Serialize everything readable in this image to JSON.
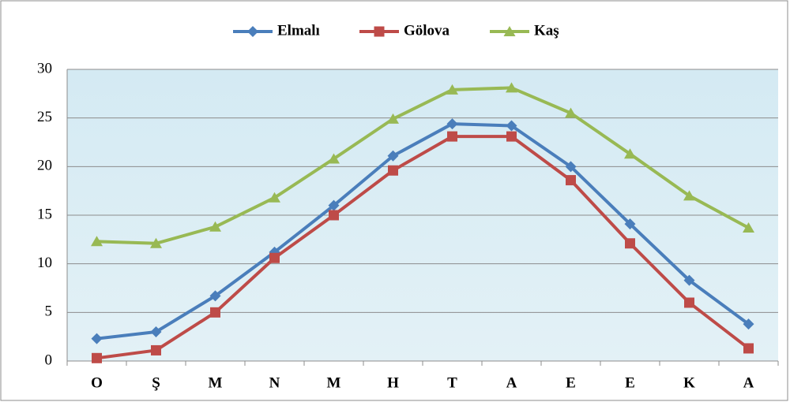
{
  "chart_data": {
    "type": "line",
    "categories": [
      "O",
      "Ş",
      "M",
      "N",
      "M",
      "H",
      "T",
      "A",
      "E",
      "E",
      "K",
      "A"
    ],
    "series": [
      {
        "name": "Elmalı",
        "color": "#4a7ebb",
        "marker": "diamond",
        "values": [
          2.3,
          3.0,
          6.7,
          11.2,
          16.0,
          21.1,
          24.4,
          24.2,
          20.0,
          14.1,
          8.3,
          3.8
        ]
      },
      {
        "name": "Gölova",
        "color": "#be4b48",
        "marker": "square",
        "values": [
          0.3,
          1.1,
          5.0,
          10.6,
          15.0,
          19.6,
          23.1,
          23.1,
          18.6,
          12.1,
          6.0,
          1.3
        ]
      },
      {
        "name": "Kaş",
        "color": "#98b954",
        "marker": "triangle",
        "values": [
          12.3,
          12.1,
          13.8,
          16.8,
          20.8,
          24.9,
          27.9,
          28.1,
          25.5,
          21.3,
          17.0,
          13.7
        ]
      }
    ],
    "ylim": [
      0,
      30
    ],
    "yticks": [
      0,
      5,
      10,
      15,
      20,
      25,
      30
    ],
    "grid": true,
    "legend": "top"
  }
}
